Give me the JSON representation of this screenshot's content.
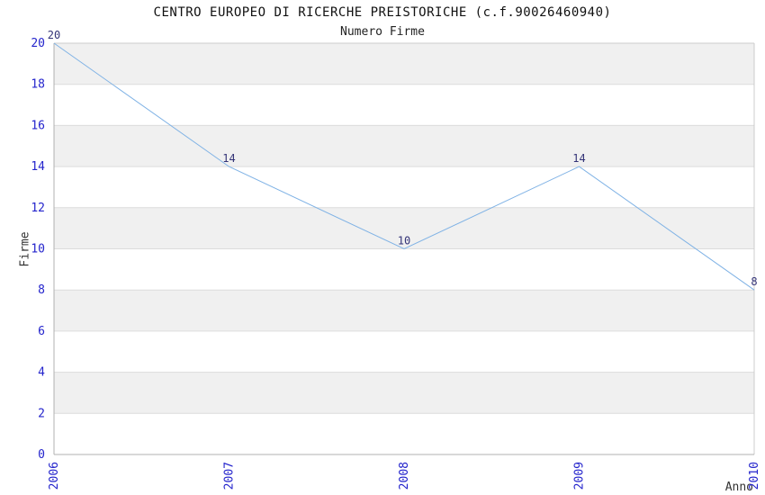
{
  "chart_data": {
    "type": "line",
    "title": "CENTRO EUROPEO DI RICERCHE PREISTORICHE (c.f.90026460940)",
    "subtitle": "Numero Firme",
    "xlabel": "Anno",
    "ylabel": "Firme",
    "x": [
      "2006",
      "2007",
      "2008",
      "2009",
      "2010"
    ],
    "series": [
      {
        "name": "Numero Firme",
        "values": [
          20,
          14,
          10,
          14,
          8
        ]
      }
    ],
    "point_labels": [
      "20",
      "14",
      "10",
      "14",
      "8"
    ],
    "ylim": [
      0,
      20
    ],
    "ytick_step": 2,
    "yticks": [
      0,
      2,
      4,
      6,
      8,
      10,
      12,
      14,
      16,
      18,
      20
    ],
    "grid": true,
    "legend_position": "none",
    "plot_style": "alternating horizontal bands, gray from top",
    "colors": {
      "line": "#7fb2e5",
      "tick_label": "#2424cc",
      "point_label": "#333377",
      "band": "#f0f0f0",
      "grid": "#dcdcdc",
      "axis": "#b0b0b0",
      "axis_light": "#cccccc",
      "title_text": "#111111",
      "axis_title_text": "#333333",
      "background": "#ffffff"
    }
  }
}
